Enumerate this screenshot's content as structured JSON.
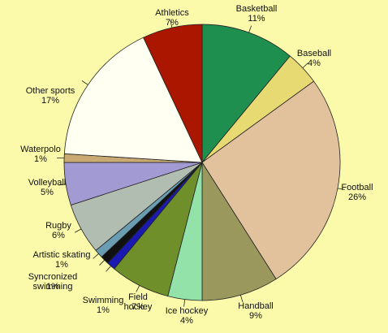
{
  "chart_data": {
    "type": "pie",
    "categories": [
      "Basketball",
      "Baseball",
      "Football",
      "Handball",
      "Ice hockey",
      "Field hockey",
      "Swimming",
      "Syncronized swimming",
      "Artistic skating",
      "Rugby",
      "Volleyball",
      "Waterpolo",
      "Other sports",
      "Athletics"
    ],
    "values": [
      11,
      4,
      26,
      9,
      4,
      7,
      1,
      1,
      1,
      6,
      5,
      1,
      17,
      7
    ],
    "value_labels": [
      "11%",
      "4%",
      "26%",
      "9%",
      "4%",
      "7%",
      "1%",
      "1%",
      "1%",
      "6%",
      "5%",
      "1%",
      "17%",
      "7%"
    ],
    "colors": [
      "#1f8f50",
      "#e8da72",
      "#e2c29c",
      "#9a985c",
      "#92e2aa",
      "#6f8f2b",
      "#1a1ab2",
      "#111111",
      "#6a9cb2",
      "#b2bdb2",
      "#a29ad2",
      "#c9aa72",
      "#fffff2",
      "#ab1600"
    ]
  }
}
